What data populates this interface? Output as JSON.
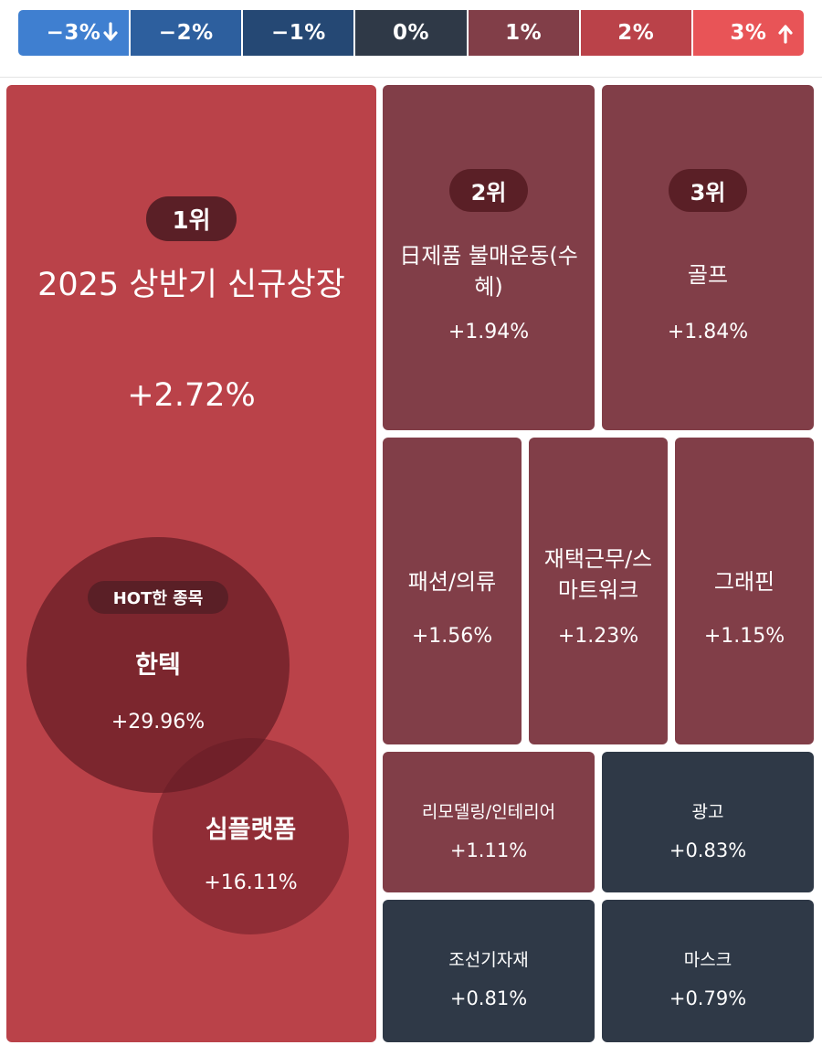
{
  "legend": [
    {
      "label": "−3%",
      "color": "#3f7fd0",
      "icon": "arrow-down-icon"
    },
    {
      "label": "−2%",
      "color": "#2d5f9e"
    },
    {
      "label": "−1%",
      "color": "#254874"
    },
    {
      "label": "0%",
      "color": "#2f3947"
    },
    {
      "label": "1%",
      "color": "#813e48"
    },
    {
      "label": "2%",
      "color": "#ba4249"
    },
    {
      "label": "3%",
      "color": "#e85457",
      "icon": "arrow-up-icon"
    }
  ],
  "colors": {
    "positive_strong": "#ba4249",
    "positive_mid": "#813e48",
    "neutral": "#2f3947",
    "rank_badge": "#5a1f26"
  },
  "tiles": {
    "t1": {
      "rank": "1위",
      "name": "2025 상반기 신규상장",
      "change": "+2.72%"
    },
    "t2": {
      "rank": "2위",
      "name": "日제품 불매운동(수혜)",
      "change": "+1.94%"
    },
    "t3": {
      "rank": "3위",
      "name": "골프",
      "change": "+1.84%"
    },
    "t4": {
      "name": "패션/의류",
      "change": "+1.56%"
    },
    "t5": {
      "name": "재택근무/스마트워크",
      "change": "+1.23%"
    },
    "t6": {
      "name": "그래핀",
      "change": "+1.15%"
    },
    "t7": {
      "name": "리모델링/인테리어",
      "change": "+1.11%"
    },
    "t8": {
      "name": "광고",
      "change": "+0.83%"
    },
    "t9": {
      "name": "조선기자재",
      "change": "+0.81%"
    },
    "t10": {
      "name": "마스크",
      "change": "+0.79%"
    }
  },
  "hot": {
    "badge": "HOT한 종목",
    "stocks": [
      {
        "name": "한텍",
        "change": "+29.96%"
      },
      {
        "name": "심플랫폼",
        "change": "+16.11%"
      }
    ]
  }
}
